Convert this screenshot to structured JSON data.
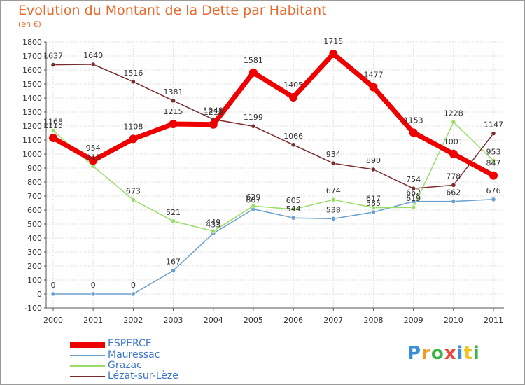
{
  "title": "Evolution du Montant de la Dette par Habitant",
  "subtitle": "(en €)",
  "logo": {
    "letters": [
      {
        "ch": "P",
        "color": "#3b8fd6"
      },
      {
        "ch": "r",
        "color": "#f29b1e"
      },
      {
        "ch": "o",
        "color": "#3bb44a"
      },
      {
        "ch": "x",
        "color": "#e8473a"
      },
      {
        "ch": "i",
        "color": "#3b8fd6"
      },
      {
        "ch": "t",
        "color": "#f2c21e"
      },
      {
        "ch": "i",
        "color": "#3bb44a"
      }
    ]
  },
  "chart_data": {
    "type": "line",
    "categories": [
      "2000",
      "2001",
      "2002",
      "2003",
      "2004",
      "2005",
      "2006",
      "2007",
      "2008",
      "2009",
      "2010",
      "2011"
    ],
    "ylim": [
      -100,
      1800
    ],
    "yticks": [
      -100,
      0,
      100,
      200,
      300,
      400,
      500,
      600,
      700,
      800,
      900,
      1000,
      1100,
      1200,
      1300,
      1400,
      1500,
      1600,
      1700,
      1800
    ],
    "grid": true,
    "legend": "bottom-left",
    "series": [
      {
        "name": "ESPERCE",
        "color": "#ee0000",
        "values": [
          1115,
          954,
          1108,
          1215,
          1211,
          1581,
          1405,
          1715,
          1477,
          1153,
          1001,
          847
        ]
      },
      {
        "name": "Mauressac",
        "color": "#6aa0cf",
        "values": [
          0,
          0,
          0,
          167,
          433,
          607,
          544,
          538,
          585,
          662,
          662,
          676
        ]
      },
      {
        "name": "Grazac",
        "color": "#99dd66",
        "values": [
          1168,
          913,
          673,
          521,
          449,
          629,
          605,
          674,
          617,
          619,
          1228,
          953
        ]
      },
      {
        "name": "Lézat-sur-Lèze",
        "color": "#7a2a2a",
        "values": [
          1637,
          1640,
          1516,
          1381,
          1248,
          1199,
          1066,
          934,
          890,
          754,
          778,
          1147
        ]
      }
    ]
  }
}
